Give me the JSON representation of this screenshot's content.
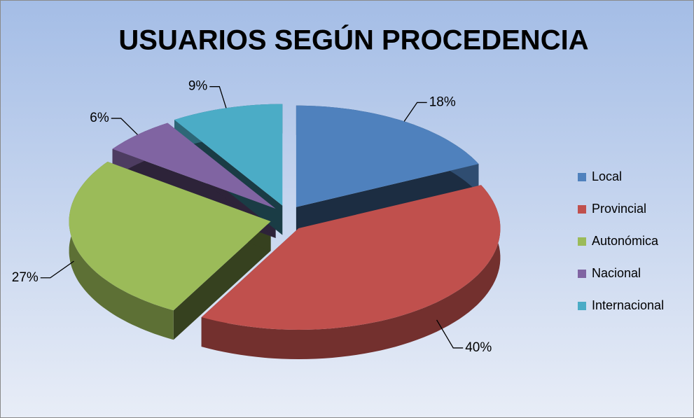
{
  "chart_data": {
    "type": "pie3d",
    "title": "USUARIOS SEGÚN PROCEDENCIA",
    "categories": [
      "Local",
      "Provincial",
      "Autonómica",
      "Nacional",
      "Internacional"
    ],
    "values": [
      18,
      40,
      27,
      6,
      9
    ],
    "value_labels": [
      "18%",
      "40%",
      "27%",
      "6%",
      "9%"
    ],
    "colors": [
      "#4f81bd",
      "#c0504d",
      "#9bbb59",
      "#8064a2",
      "#4bacc6"
    ],
    "legend": "right"
  }
}
